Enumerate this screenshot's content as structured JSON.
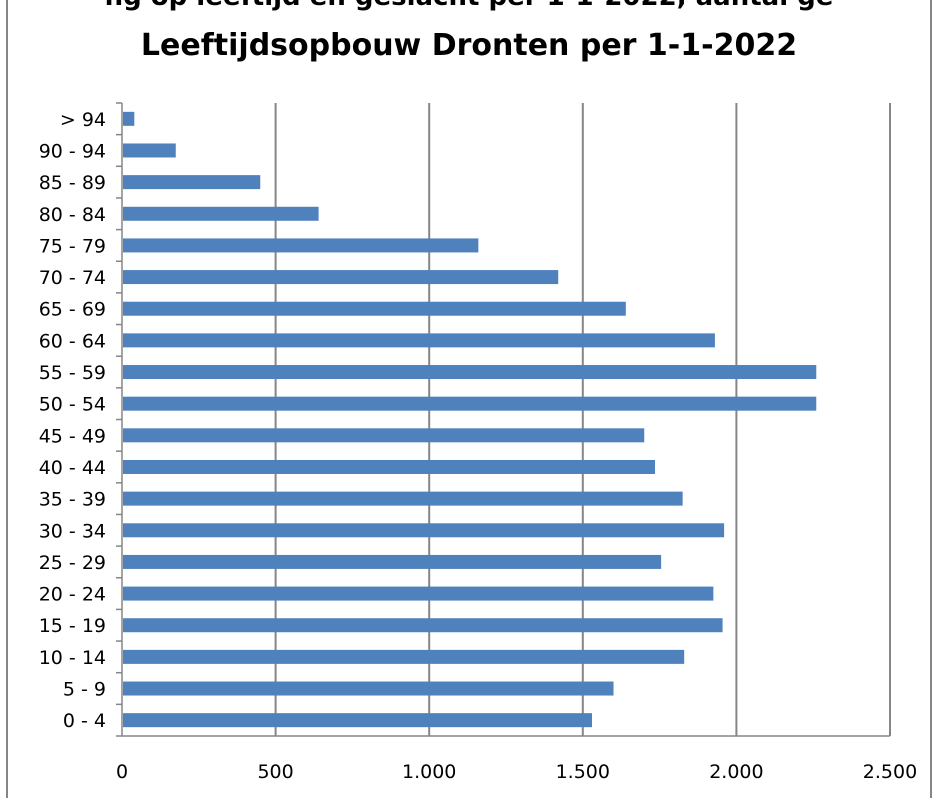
{
  "header_strip": "ng op leeftijd ... (partially visible heading text)",
  "chart_data": {
    "type": "bar",
    "orientation": "horizontal",
    "title": "Leeftijdsopbouw Dronten per 1-1-2022",
    "categories": [
      "0 - 4",
      "5 - 9",
      "10 - 14",
      "15 - 19",
      "20 - 24",
      "25 - 29",
      "30 - 34",
      "35 - 39",
      "40 - 44",
      "45 - 49",
      "50 - 54",
      "55 - 59",
      "60 - 64",
      "65 - 69",
      "70 - 74",
      "75 - 79",
      "80 - 84",
      "85 - 89",
      "90 - 94",
      "> 94"
    ],
    "values": [
      1530,
      1600,
      1830,
      1955,
      1925,
      1755,
      1960,
      1825,
      1735,
      1700,
      2260,
      2260,
      1930,
      1640,
      1420,
      1160,
      640,
      450,
      175,
      40
    ],
    "xlim": [
      0,
      2500
    ],
    "xticks": [
      0,
      500,
      1000,
      1500,
      2000,
      2500
    ],
    "xtick_labels": [
      "0",
      "500",
      "1.000",
      "1.500",
      "2.000",
      "2.500"
    ],
    "grid": "vertical",
    "bar_color": "#4F81BD",
    "gridline_color": "#868686"
  }
}
